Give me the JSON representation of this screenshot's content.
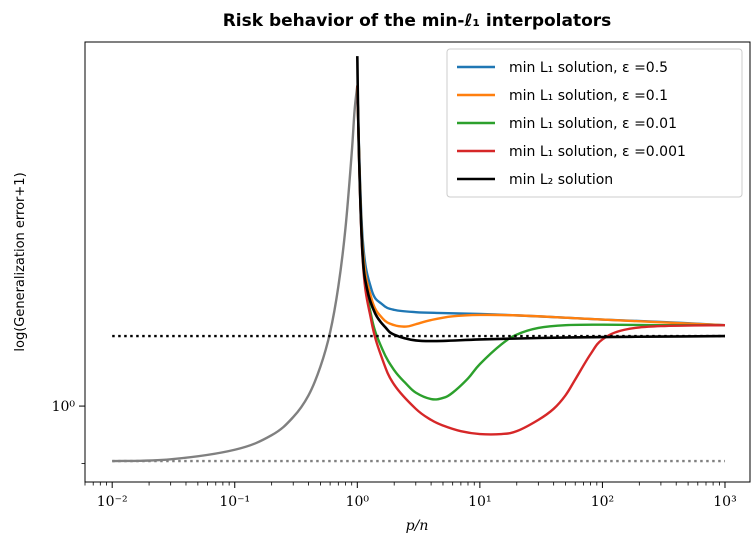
{
  "chart_data": {
    "type": "line",
    "title": "Risk behavior of the min-ℓ₁ interpolators",
    "xlabel": "p/n",
    "ylabel": "log(Generalization error+1)",
    "x_scale": "log",
    "y_scale": "log",
    "xlim": [
      0.006,
      1600
    ],
    "ylim": [
      0.87,
      1.95
    ],
    "x_ticks": [
      {
        "value": 0.01,
        "label": "10⁻²"
      },
      {
        "value": 0.1,
        "label": "10⁻¹"
      },
      {
        "value": 1,
        "label": "10⁰"
      },
      {
        "value": 10,
        "label": "10¹"
      },
      {
        "value": 100,
        "label": "10²"
      },
      {
        "value": 1000,
        "label": "10³"
      }
    ],
    "y_ticks": [
      {
        "value": 1.0,
        "label": "10⁰"
      }
    ],
    "grid": false,
    "legend_position": "top-right",
    "series": [
      {
        "name": "min L₁ solution, ε =0.5",
        "color": "#1f77b4",
        "x": [
          1,
          1.1,
          1.3,
          1.6,
          2,
          3,
          5,
          10,
          20,
          50,
          100,
          300,
          1000
        ],
        "y": [
          1.8,
          1.37,
          1.24,
          1.205,
          1.193,
          1.188,
          1.186,
          1.184,
          1.181,
          1.176,
          1.172,
          1.167,
          1.16
        ]
      },
      {
        "name": "min L₁ solution, ε =0.1",
        "color": "#ff7f0e",
        "x": [
          1,
          1.1,
          1.3,
          1.6,
          2,
          2.5,
          3,
          4,
          6,
          10,
          20,
          50,
          100,
          300,
          1000
        ],
        "y": [
          1.8,
          1.35,
          1.22,
          1.175,
          1.16,
          1.157,
          1.162,
          1.171,
          1.179,
          1.182,
          1.181,
          1.176,
          1.172,
          1.166,
          1.16
        ]
      },
      {
        "name": "min L₁ solution, ε =0.01",
        "color": "#2ca02c",
        "x": [
          1,
          1.1,
          1.3,
          1.6,
          2,
          2.5,
          3,
          4,
          5,
          6,
          8,
          10,
          15,
          20,
          30,
          50,
          100,
          300,
          1000
        ],
        "y": [
          1.8,
          1.33,
          1.18,
          1.11,
          1.068,
          1.042,
          1.025,
          1.013,
          1.015,
          1.025,
          1.052,
          1.08,
          1.12,
          1.14,
          1.154,
          1.16,
          1.161,
          1.16,
          1.16
        ]
      },
      {
        "name": "min L₁ solution, ε =0.001",
        "color": "#d62728",
        "x": [
          1,
          1.1,
          1.3,
          1.6,
          2,
          3,
          4,
          5,
          7,
          10,
          15,
          20,
          30,
          40,
          50,
          60,
          80,
          100,
          150,
          300,
          1000
        ],
        "y": [
          1.8,
          1.32,
          1.17,
          1.09,
          1.04,
          0.995,
          0.975,
          0.965,
          0.955,
          0.95,
          0.95,
          0.955,
          0.975,
          0.995,
          1.02,
          1.05,
          1.1,
          1.13,
          1.15,
          1.158,
          1.16
        ]
      },
      {
        "name": "min L₂ solution",
        "color": "#000000",
        "x": [
          1,
          1.03,
          1.1,
          1.2,
          1.4,
          1.7,
          2,
          3,
          5,
          10,
          30,
          100,
          300,
          1000
        ],
        "y": [
          1.9,
          1.6,
          1.33,
          1.24,
          1.185,
          1.155,
          1.14,
          1.128,
          1.127,
          1.13,
          1.133,
          1.135,
          1.136,
          1.137
        ]
      },
      {
        "name": "",
        "color": "#808080",
        "x": [
          0.01,
          0.03,
          0.1,
          0.2,
          0.3,
          0.4,
          0.5,
          0.6,
          0.7,
          0.8,
          0.9,
          0.95,
          1.0
        ],
        "y": [
          0.904,
          0.907,
          0.923,
          0.948,
          0.98,
          1.02,
          1.075,
          1.145,
          1.245,
          1.385,
          1.59,
          1.72,
          1.8
        ]
      }
    ],
    "reference_lines": [
      {
        "y": 1.137,
        "style": "dotted",
        "color": "#000000"
      },
      {
        "y": 0.904,
        "style": "dotted",
        "color": "#808080"
      }
    ]
  }
}
